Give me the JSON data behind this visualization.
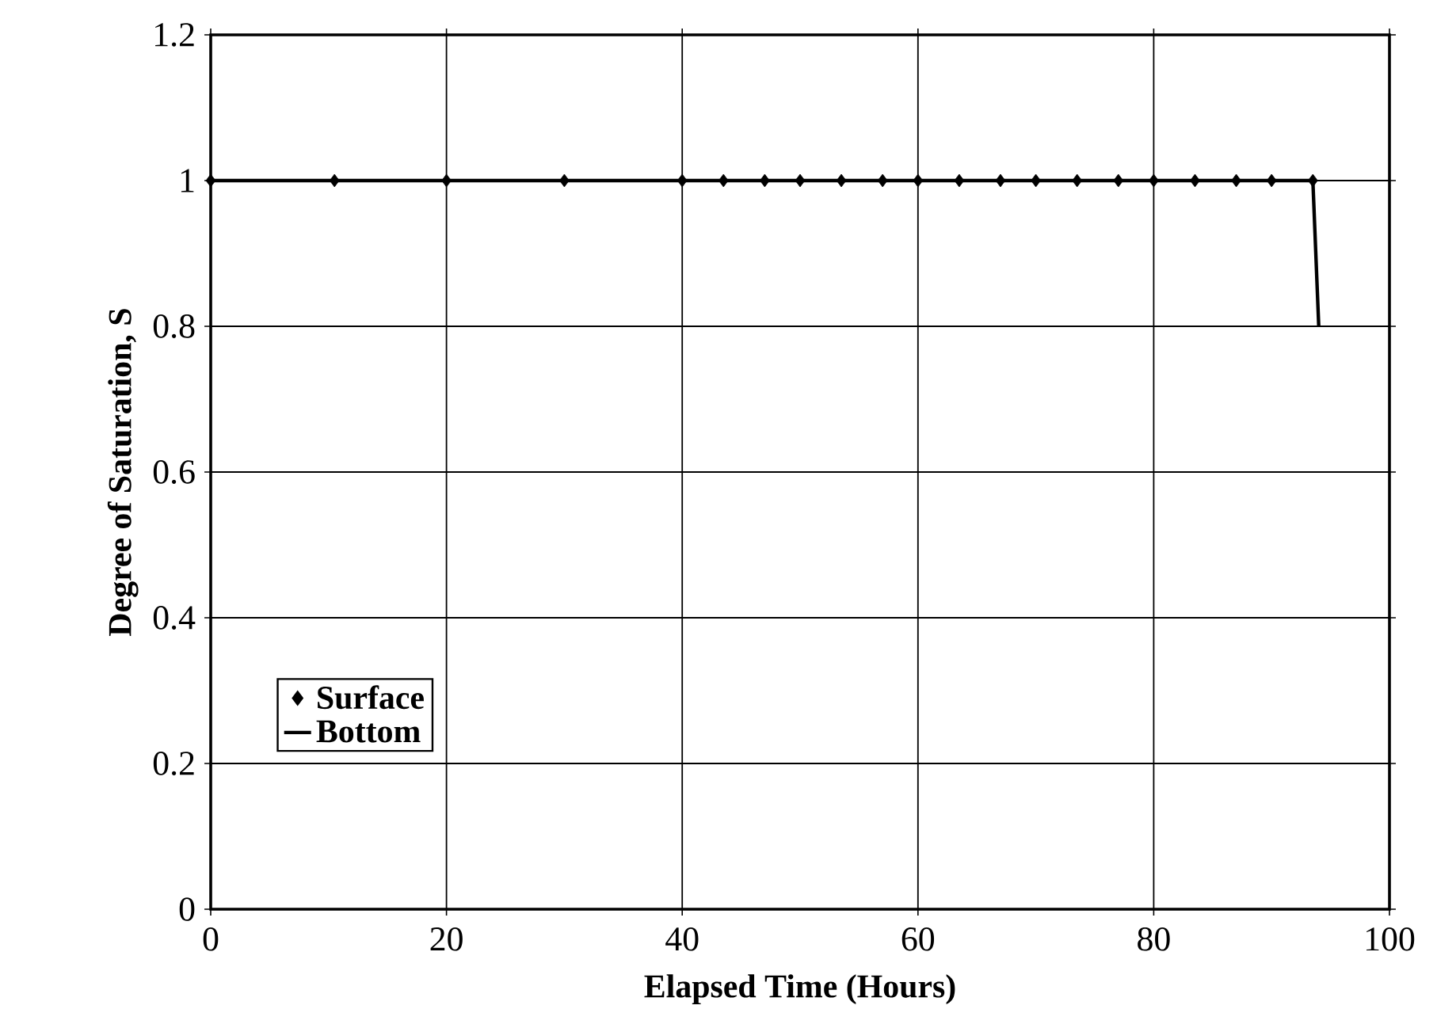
{
  "chart_data": {
    "type": "line",
    "xlabel": "Elapsed Time (Hours)",
    "ylabel": "Degree of Saturation, S",
    "xlim": [
      0,
      100
    ],
    "xticks": [
      0,
      20,
      40,
      60,
      80,
      100
    ],
    "ylim": [
      0,
      1.2
    ],
    "yticks": [
      0,
      0.2,
      0.4,
      0.6,
      0.8,
      1,
      1.2
    ],
    "grid": true,
    "legend": "bottom left",
    "series": [
      {
        "name": "Surface",
        "type": "scatter",
        "marker": "diamond",
        "color": "#000000",
        "x": [
          0,
          10.5,
          20,
          30,
          40,
          43.5,
          47,
          50,
          53.5,
          57,
          60,
          63.5,
          67,
          70,
          73.5,
          77,
          80,
          83.5,
          87,
          90,
          93.5
        ],
        "values": [
          1,
          1,
          1,
          1,
          1,
          1,
          1,
          1,
          1,
          1,
          1,
          1,
          1,
          1,
          1,
          1,
          1,
          1,
          1,
          1,
          1
        ]
      },
      {
        "name": "Bottom",
        "marker": "none",
        "color": "#000000",
        "x": [
          0,
          10.5,
          20,
          30,
          40,
          43.5,
          47,
          50,
          53.5,
          57,
          60,
          63.5,
          67,
          70,
          73.5,
          77,
          80,
          83.5,
          87,
          90,
          93.5,
          94
        ],
        "values": [
          1,
          1,
          1,
          1,
          1,
          1,
          1,
          1,
          1,
          1,
          1,
          1,
          1,
          1,
          1,
          1,
          1,
          1,
          1,
          1,
          1,
          0.8
        ]
      }
    ]
  }
}
